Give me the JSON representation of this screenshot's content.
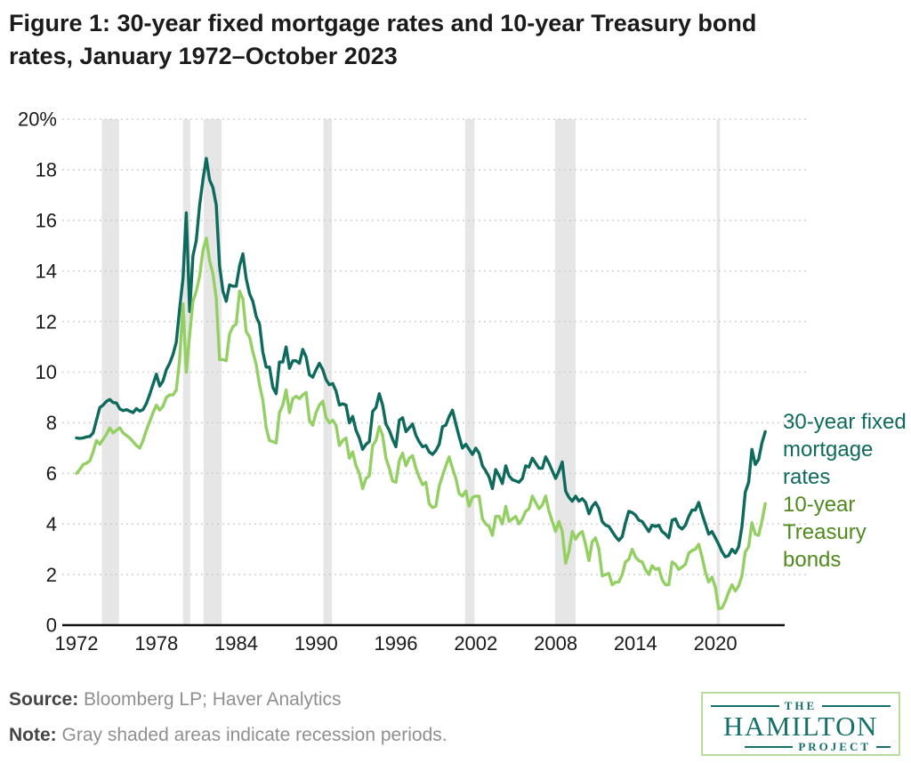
{
  "title_lines": [
    "Figure 1: 30-year fixed mortgage rates and 10-year Treasury bond",
    "rates, January 1972–October 2023"
  ],
  "chart_data": {
    "type": "line",
    "title": "Figure 1: 30-year fixed mortgage rates and 10-year Treasury bond rates, January 1972–October 2023",
    "x_start": 1972.0,
    "x_step_years": 0.25,
    "xlim": [
      1971,
      2024.3
    ],
    "ylim": [
      0,
      20
    ],
    "grid": "dotted-horizontal",
    "legend_position": "right",
    "x_ticks": [
      1972,
      1978,
      1984,
      1990,
      1996,
      2002,
      2008,
      2014,
      2020
    ],
    "y_ticks": [
      {
        "v": 0,
        "label": "0"
      },
      {
        "v": 2,
        "label": "2"
      },
      {
        "v": 4,
        "label": "4"
      },
      {
        "v": 6,
        "label": "6"
      },
      {
        "v": 8,
        "label": "8"
      },
      {
        "v": 10,
        "label": "10"
      },
      {
        "v": 12,
        "label": "12"
      },
      {
        "v": 14,
        "label": "14"
      },
      {
        "v": 16,
        "label": "16"
      },
      {
        "v": 18,
        "label": "18"
      },
      {
        "v": 20,
        "label": "20%"
      }
    ],
    "recessions": [
      [
        1973.9,
        1975.2
      ],
      [
        1980.0,
        1980.55
      ],
      [
        1981.55,
        1982.9
      ],
      [
        1990.55,
        1991.2
      ],
      [
        2001.2,
        2001.9
      ],
      [
        2007.95,
        2009.5
      ],
      [
        2020.1,
        2020.35
      ]
    ],
    "series": [
      {
        "name": "30-year fixed mortgage rates",
        "color": "#0d6a5c",
        "label_color": "#0d6a5c",
        "values": [
          7.4,
          7.38,
          7.4,
          7.44,
          7.46,
          7.6,
          8.1,
          8.6,
          8.7,
          8.85,
          8.92,
          8.8,
          8.78,
          8.55,
          8.48,
          8.52,
          8.46,
          8.4,
          8.56,
          8.46,
          8.52,
          8.76,
          9.12,
          9.52,
          9.92,
          9.45,
          9.65,
          10.1,
          10.35,
          10.7,
          11.2,
          12.5,
          13.7,
          16.3,
          12.4,
          14.6,
          15.2,
          16.6,
          17.6,
          18.45,
          17.6,
          17.3,
          16.6,
          14.2,
          13.2,
          12.8,
          13.45,
          13.4,
          13.4,
          14.2,
          14.68,
          13.7,
          13.1,
          12.8,
          12.2,
          11.9,
          10.8,
          10.2,
          10.2,
          9.4,
          9.15,
          10.4,
          10.4,
          11.0,
          10.15,
          10.45,
          10.45,
          10.35,
          10.9,
          10.6,
          9.9,
          9.8,
          10.1,
          10.35,
          10.1,
          9.7,
          9.5,
          9.55,
          9.25,
          8.7,
          8.75,
          8.7,
          8.0,
          8.25,
          7.7,
          7.4,
          6.95,
          7.15,
          7.25,
          8.45,
          8.6,
          9.15,
          8.7,
          7.95,
          7.7,
          7.35,
          7.05,
          8.1,
          8.2,
          7.65,
          7.8,
          7.95,
          7.5,
          7.25,
          7.05,
          7.1,
          6.85,
          6.75,
          6.9,
          7.15,
          7.85,
          7.9,
          8.25,
          8.5,
          7.95,
          7.45,
          7.0,
          7.15,
          6.95,
          6.75,
          7.0,
          6.8,
          6.3,
          6.1,
          5.85,
          5.4,
          6.15,
          5.9,
          5.6,
          6.3,
          5.9,
          5.75,
          5.7,
          5.65,
          5.8,
          6.3,
          6.25,
          6.6,
          6.4,
          6.2,
          6.2,
          6.65,
          6.4,
          6.1,
          5.8,
          6.1,
          6.45,
          5.3,
          5.05,
          4.9,
          5.1,
          4.9,
          5.0,
          4.85,
          4.4,
          4.7,
          4.85,
          4.6,
          4.1,
          3.95,
          3.9,
          3.7,
          3.5,
          3.35,
          3.5,
          4.05,
          4.5,
          4.45,
          4.35,
          4.15,
          4.1,
          3.9,
          3.7,
          3.95,
          3.9,
          3.95,
          3.7,
          3.6,
          3.45,
          4.15,
          4.2,
          3.9,
          3.8,
          3.95,
          4.3,
          4.55,
          4.55,
          4.85,
          4.4,
          4.0,
          3.6,
          3.7,
          3.45,
          3.2,
          2.9,
          2.7,
          2.75,
          3.0,
          2.85,
          3.1,
          3.9,
          5.25,
          5.65,
          6.95,
          6.35,
          6.55,
          7.2,
          7.65
        ]
      },
      {
        "name": "10-year Treasury bonds",
        "color": "#94cf63",
        "label_color": "#4f8a1d",
        "values": [
          6.0,
          6.15,
          6.35,
          6.4,
          6.5,
          6.85,
          7.3,
          7.15,
          7.35,
          7.55,
          7.8,
          7.6,
          7.7,
          7.8,
          7.6,
          7.5,
          7.4,
          7.25,
          7.1,
          7.0,
          7.3,
          7.7,
          8.05,
          8.4,
          8.7,
          8.5,
          8.65,
          9.0,
          9.1,
          9.1,
          9.3,
          10.5,
          12.7,
          10.0,
          11.5,
          12.8,
          13.2,
          13.8,
          14.8,
          15.3,
          14.4,
          13.9,
          12.9,
          10.5,
          10.5,
          10.45,
          11.5,
          11.8,
          11.9,
          13.2,
          12.9,
          11.6,
          11.4,
          10.8,
          10.3,
          9.5,
          8.9,
          7.8,
          7.3,
          7.25,
          7.2,
          8.4,
          8.7,
          9.3,
          8.4,
          8.95,
          9.05,
          8.95,
          9.1,
          9.2,
          8.1,
          7.9,
          8.4,
          8.7,
          8.85,
          8.2,
          8.0,
          8.1,
          7.9,
          7.1,
          7.3,
          7.4,
          6.6,
          6.85,
          6.3,
          6.0,
          5.4,
          5.8,
          5.9,
          7.1,
          7.3,
          7.85,
          7.5,
          6.6,
          6.2,
          5.7,
          5.65,
          6.5,
          6.8,
          6.3,
          6.6,
          6.7,
          6.2,
          5.85,
          5.55,
          5.65,
          4.8,
          4.65,
          4.7,
          5.5,
          5.9,
          6.3,
          6.65,
          6.2,
          5.8,
          5.2,
          5.1,
          5.3,
          4.7,
          5.05,
          5.1,
          5.1,
          4.2,
          4.0,
          3.9,
          3.55,
          4.3,
          4.3,
          4.0,
          4.7,
          4.1,
          4.2,
          4.3,
          4.0,
          4.2,
          4.5,
          4.6,
          5.1,
          4.85,
          4.6,
          4.75,
          5.1,
          4.5,
          4.1,
          3.7,
          4.1,
          3.7,
          2.45,
          2.9,
          3.7,
          3.4,
          3.6,
          3.7,
          3.2,
          2.55,
          3.3,
          3.45,
          3.0,
          1.95,
          2.0,
          2.05,
          1.6,
          1.7,
          1.7,
          2.0,
          2.5,
          2.6,
          3.0,
          2.7,
          2.55,
          2.5,
          2.2,
          2.0,
          2.35,
          2.2,
          2.25,
          1.8,
          1.6,
          1.6,
          2.5,
          2.4,
          2.2,
          2.3,
          2.4,
          2.85,
          2.95,
          3.0,
          3.2,
          2.7,
          2.1,
          1.7,
          1.9,
          1.5,
          0.65,
          0.68,
          0.95,
          1.3,
          1.6,
          1.35,
          1.55,
          1.95,
          2.9,
          3.1,
          4.05,
          3.6,
          3.55,
          4.1,
          4.8
        ]
      }
    ]
  },
  "footer": {
    "source_label": "Source:",
    "source_text": " Bloomberg LP; Haver Analytics",
    "note_label": "Note:",
    "note_text": " Gray shaded areas indicate recession periods."
  },
  "logo": {
    "the": "THE",
    "hamilton": "HAMILTON",
    "project": "PROJECT"
  },
  "palette": {
    "mortgage_line": "#0d6a5c",
    "treasury_line": "#94cf63",
    "treasury_label": "#4f8a1d",
    "recession_band": "#e6e6e6",
    "gridline": "#c9c9c9",
    "axis": "#111111",
    "logo_teal": "#156f6b",
    "logo_border": "#b9db9b"
  }
}
